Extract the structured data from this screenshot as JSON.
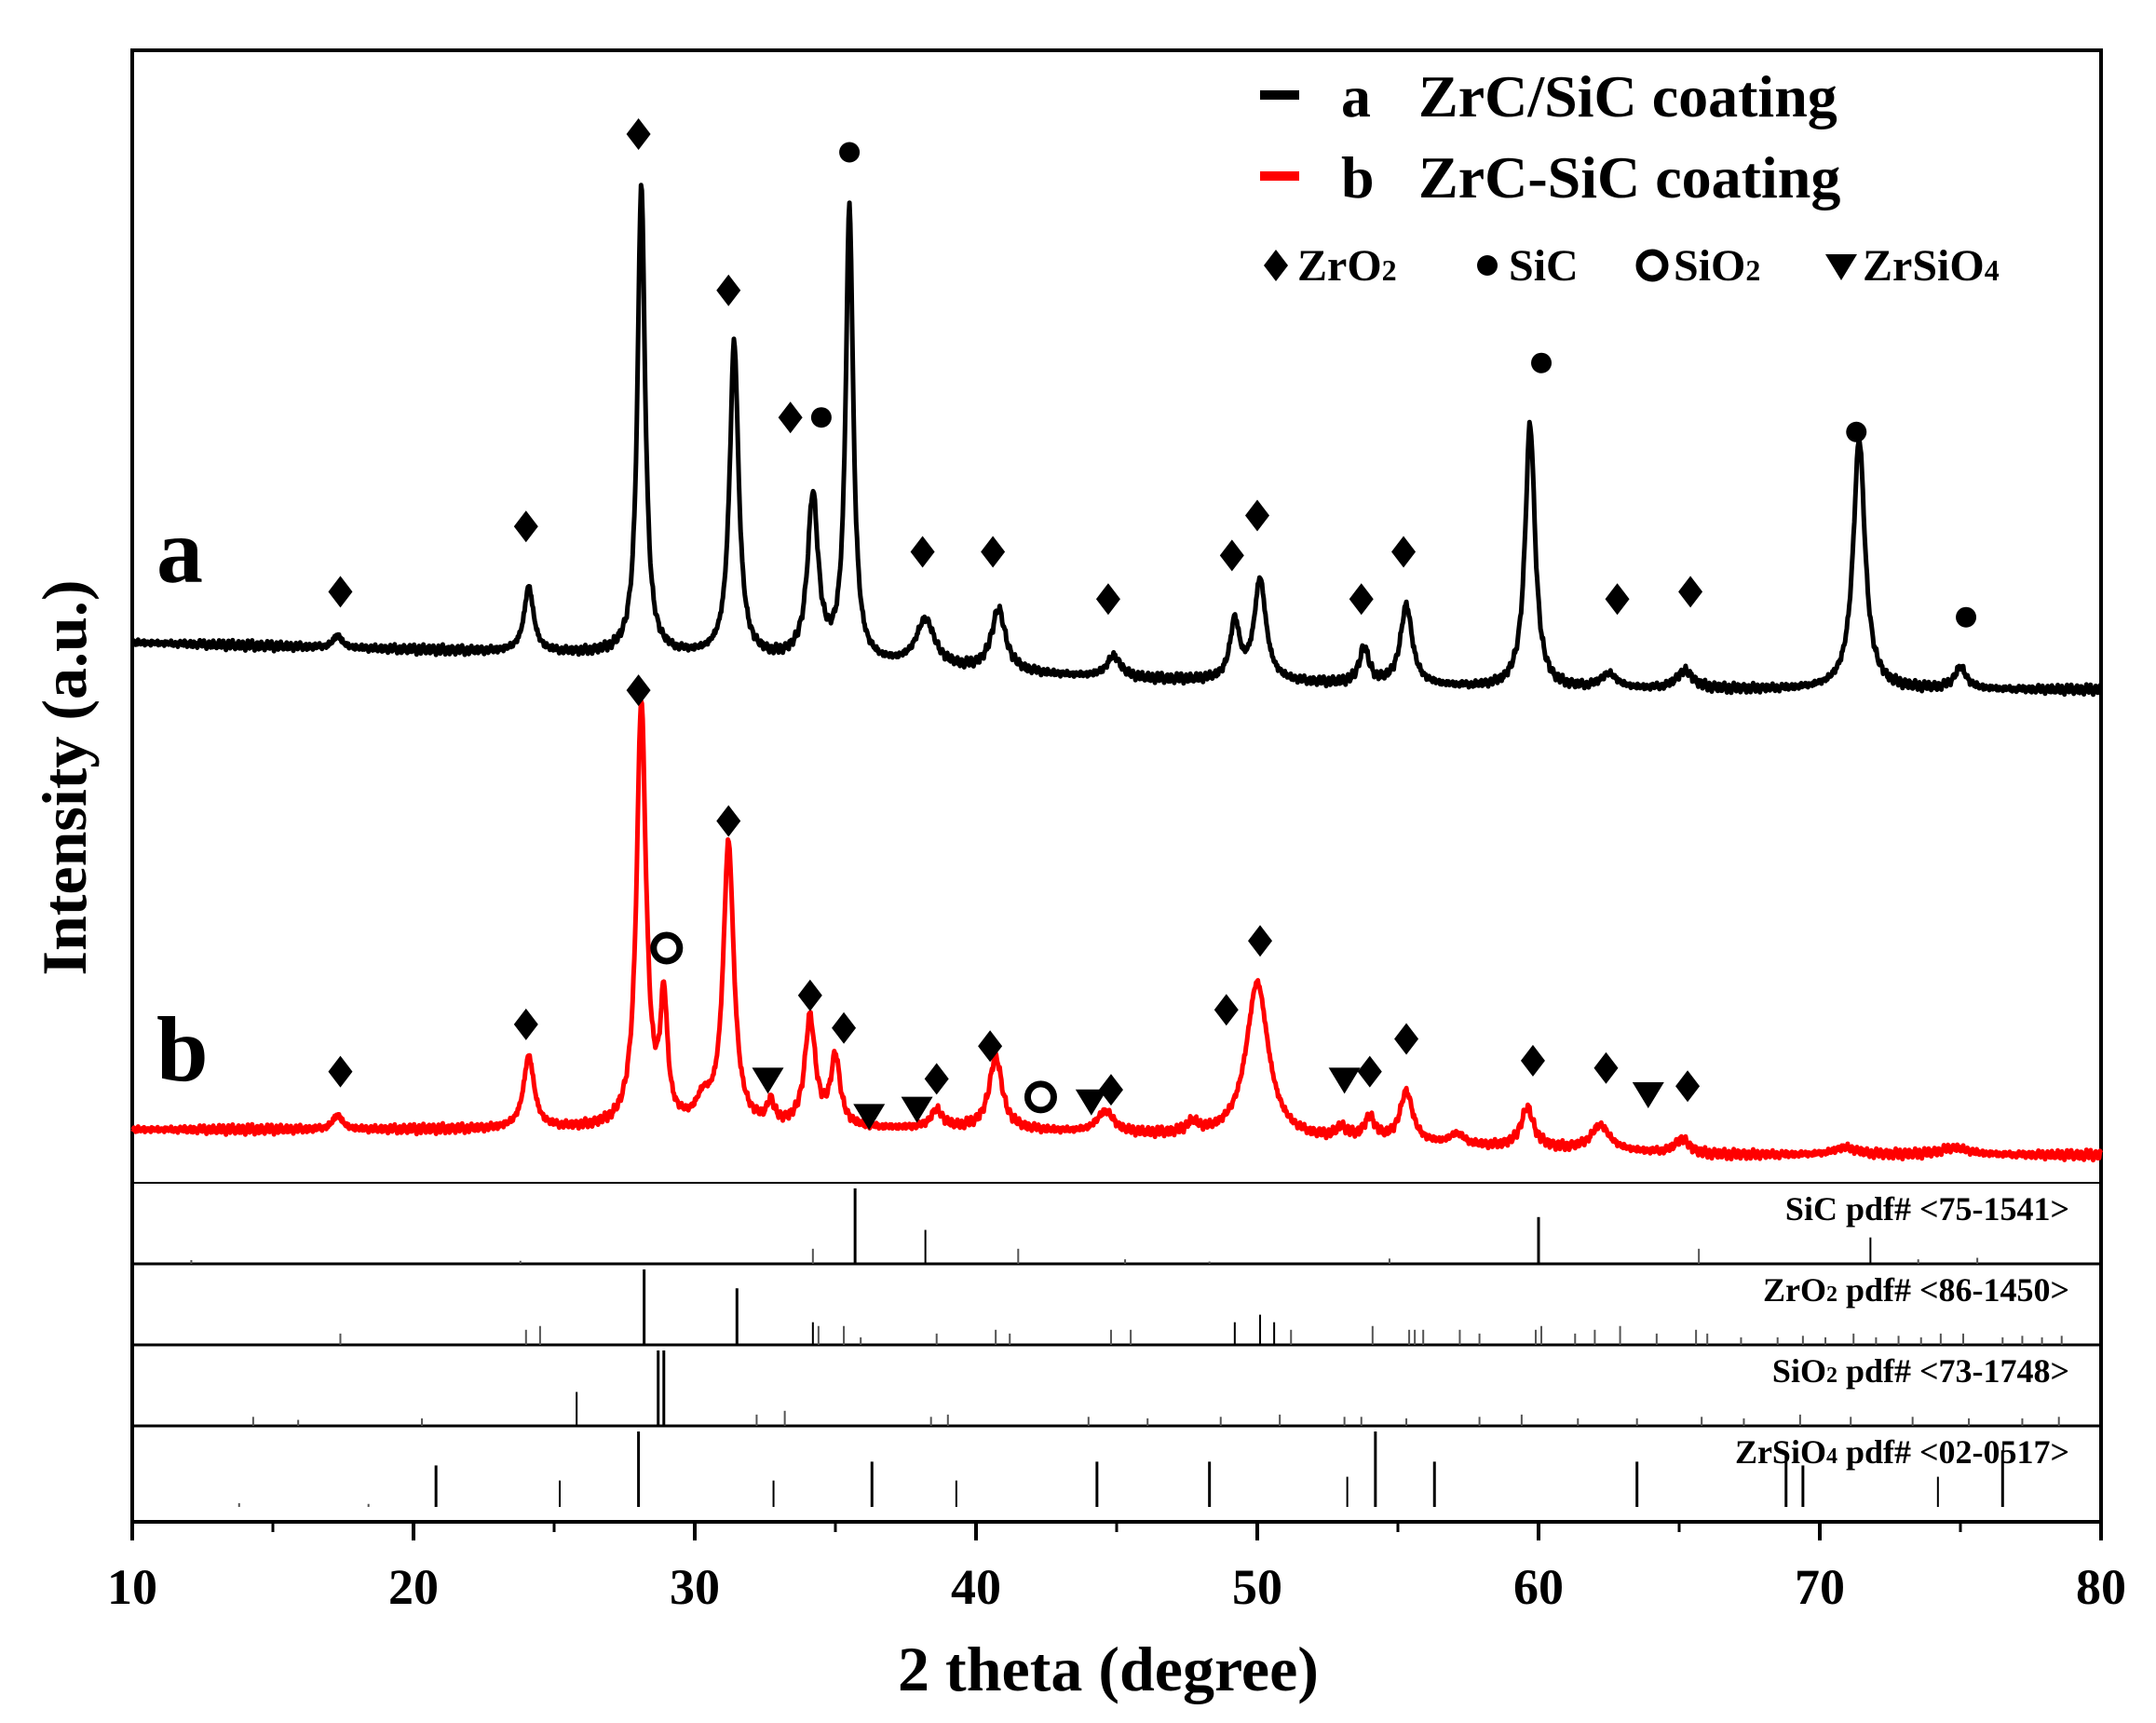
{
  "chart_data": {
    "type": "line",
    "xlabel": "2 theta (degree)",
    "ylabel": "Intensity (a.u.)",
    "xlim": [
      10,
      80
    ],
    "xticks": [
      10,
      20,
      30,
      40,
      50,
      60,
      70,
      80
    ],
    "legend": {
      "placement": "top-right",
      "entries": [
        {
          "marker": "a",
          "text": "ZrC/SiC coating",
          "color": "#000000"
        },
        {
          "marker": "b",
          "text": "ZrC-SiC coating",
          "color": "#ff0000"
        }
      ],
      "phases": [
        {
          "symbol": "diamond",
          "label": "ZrO",
          "sub": "2"
        },
        {
          "symbol": "dot",
          "label": "SiC",
          "sub": ""
        },
        {
          "symbol": "circle",
          "label": "SiO",
          "sub": "2"
        },
        {
          "symbol": "triangle",
          "label": "ZrSiO",
          "sub": "4"
        }
      ]
    },
    "series": [
      {
        "name": "a",
        "color": "#000000",
        "baseline": [
          [
            10,
            0.0
          ],
          [
            30,
            -0.04
          ],
          [
            45,
            -0.1
          ],
          [
            60,
            -0.13
          ],
          [
            80,
            -0.13
          ]
        ],
        "peaks": [
          [
            17.3,
            0.035,
            0.35
          ],
          [
            24.1,
            0.18,
            0.4
          ],
          [
            28.1,
            1.3,
            0.32
          ],
          [
            31.4,
            0.87,
            0.38
          ],
          [
            34.2,
            0.45,
            0.45
          ],
          [
            35.5,
            1.25,
            0.32
          ],
          [
            38.2,
            0.13,
            0.8
          ],
          [
            40.8,
            0.17,
            0.6
          ],
          [
            44.9,
            0.06,
            0.6
          ],
          [
            49.2,
            0.16,
            0.4
          ],
          [
            50.1,
            0.28,
            0.5
          ],
          [
            53.8,
            0.1,
            0.4
          ],
          [
            55.3,
            0.22,
            0.5
          ],
          [
            59.7,
            0.73,
            0.42
          ],
          [
            62.5,
            0.04,
            0.7
          ],
          [
            65.2,
            0.05,
            0.7
          ],
          [
            71.4,
            0.69,
            0.5
          ],
          [
            75.0,
            0.06,
            0.5
          ]
        ],
        "labels": [
          {
            "x": 17.4,
            "y": 0.14,
            "symbol": "diamond"
          },
          {
            "x": 24.0,
            "y": 0.32,
            "symbol": "diamond"
          },
          {
            "x": 28.0,
            "y": 1.4,
            "symbol": "diamond"
          },
          {
            "x": 31.2,
            "y": 0.97,
            "symbol": "diamond"
          },
          {
            "x": 33.4,
            "y": 0.62,
            "symbol": "diamond"
          },
          {
            "x": 34.5,
            "y": 0.62,
            "symbol": "dot"
          },
          {
            "x": 35.5,
            "y": 1.35,
            "symbol": "dot"
          },
          {
            "x": 38.1,
            "y": 0.25,
            "symbol": "diamond"
          },
          {
            "x": 40.6,
            "y": 0.25,
            "symbol": "diamond"
          },
          {
            "x": 44.7,
            "y": 0.12,
            "symbol": "diamond"
          },
          {
            "x": 49.1,
            "y": 0.24,
            "symbol": "diamond"
          },
          {
            "x": 50.0,
            "y": 0.35,
            "symbol": "diamond"
          },
          {
            "x": 53.7,
            "y": 0.12,
            "symbol": "diamond"
          },
          {
            "x": 55.2,
            "y": 0.25,
            "symbol": "diamond"
          },
          {
            "x": 60.1,
            "y": 0.77,
            "symbol": "dot"
          },
          {
            "x": 62.8,
            "y": 0.12,
            "symbol": "diamond"
          },
          {
            "x": 65.4,
            "y": 0.14,
            "symbol": "diamond"
          },
          {
            "x": 71.3,
            "y": 0.58,
            "symbol": "dot"
          },
          {
            "x": 75.2,
            "y": 0.07,
            "symbol": "dot"
          }
        ]
      },
      {
        "name": "b",
        "color": "#ff0000",
        "baseline": [
          [
            10,
            0.0
          ],
          [
            40,
            0.0
          ],
          [
            66,
            -0.07
          ],
          [
            80,
            -0.07
          ]
        ],
        "peaks": [
          [
            17.3,
            0.04,
            0.4
          ],
          [
            24.1,
            0.2,
            0.45
          ],
          [
            28.1,
            1.17,
            0.4
          ],
          [
            28.9,
            0.33,
            0.3
          ],
          [
            30.3,
            0.06,
            0.6
          ],
          [
            31.2,
            0.78,
            0.45
          ],
          [
            32.7,
            0.06,
            0.3
          ],
          [
            34.1,
            0.3,
            0.45
          ],
          [
            35.0,
            0.19,
            0.4
          ],
          [
            38.6,
            0.05,
            0.5
          ],
          [
            40.7,
            0.2,
            0.55
          ],
          [
            44.6,
            0.06,
            0.7
          ],
          [
            47.7,
            0.03,
            0.5
          ],
          [
            50.0,
            0.43,
            0.95
          ],
          [
            53.0,
            0.03,
            0.5
          ],
          [
            54.0,
            0.06,
            0.5
          ],
          [
            55.3,
            0.14,
            0.55
          ],
          [
            57.1,
            0.03,
            0.6
          ],
          [
            59.6,
            0.11,
            0.55
          ],
          [
            62.2,
            0.07,
            0.8
          ],
          [
            65.1,
            0.04,
            0.6
          ],
          [
            70.9,
            0.02,
            1.0
          ],
          [
            74.8,
            0.02,
            1.2
          ]
        ],
        "labels": [
          {
            "x": 17.4,
            "y": 0.16,
            "symbol": "diamond"
          },
          {
            "x": 24.0,
            "y": 0.29,
            "symbol": "diamond"
          },
          {
            "x": 28.0,
            "y": 1.21,
            "symbol": "diamond"
          },
          {
            "x": 29.0,
            "y": 0.5,
            "symbol": "circle"
          },
          {
            "x": 31.2,
            "y": 0.85,
            "symbol": "diamond"
          },
          {
            "x": 32.6,
            "y": 0.14,
            "symbol": "triangle"
          },
          {
            "x": 34.1,
            "y": 0.37,
            "symbol": "diamond"
          },
          {
            "x": 35.3,
            "y": 0.28,
            "symbol": "diamond"
          },
          {
            "x": 36.2,
            "y": 0.04,
            "symbol": "triangle"
          },
          {
            "x": 37.9,
            "y": 0.06,
            "symbol": "triangle"
          },
          {
            "x": 38.6,
            "y": 0.14,
            "symbol": "diamond"
          },
          {
            "x": 40.5,
            "y": 0.23,
            "symbol": "diamond"
          },
          {
            "x": 42.3,
            "y": 0.09,
            "symbol": "circle"
          },
          {
            "x": 44.1,
            "y": 0.08,
            "symbol": "triangle"
          },
          {
            "x": 44.8,
            "y": 0.11,
            "symbol": "diamond"
          },
          {
            "x": 48.9,
            "y": 0.33,
            "symbol": "diamond"
          },
          {
            "x": 50.1,
            "y": 0.52,
            "symbol": "diamond"
          },
          {
            "x": 53.1,
            "y": 0.14,
            "symbol": "triangle"
          },
          {
            "x": 54.0,
            "y": 0.16,
            "symbol": "diamond"
          },
          {
            "x": 55.3,
            "y": 0.25,
            "symbol": "diamond"
          },
          {
            "x": 59.8,
            "y": 0.19,
            "symbol": "diamond"
          },
          {
            "x": 62.4,
            "y": 0.17,
            "symbol": "diamond"
          },
          {
            "x": 63.9,
            "y": 0.1,
            "symbol": "triangle"
          },
          {
            "x": 65.3,
            "y": 0.12,
            "symbol": "diamond"
          }
        ]
      }
    ],
    "reference_patterns": [
      {
        "label": "SiC pdf# <75-1541>",
        "lines": [
          [
            12.1,
            0.05
          ],
          [
            23.8,
            0.04
          ],
          [
            34.2,
            0.2
          ],
          [
            35.7,
            1.0
          ],
          [
            38.2,
            0.45
          ],
          [
            41.5,
            0.2
          ],
          [
            45.3,
            0.06
          ],
          [
            48.3,
            0.03
          ],
          [
            54.7,
            0.07
          ],
          [
            60.0,
            0.62
          ],
          [
            65.7,
            0.2
          ],
          [
            71.8,
            0.35
          ],
          [
            73.5,
            0.06
          ],
          [
            75.6,
            0.08
          ]
        ]
      },
      {
        "label": "ZrO pdf# <86-1450>",
        "label_sub": "2",
        "lines": [
          [
            17.4,
            0.15
          ],
          [
            24.0,
            0.2
          ],
          [
            24.5,
            0.25
          ],
          [
            28.2,
            1.0
          ],
          [
            31.5,
            0.75
          ],
          [
            34.2,
            0.3
          ],
          [
            34.4,
            0.25
          ],
          [
            35.3,
            0.25
          ],
          [
            35.9,
            0.1
          ],
          [
            38.6,
            0.15
          ],
          [
            40.7,
            0.2
          ],
          [
            41.2,
            0.15
          ],
          [
            44.8,
            0.2
          ],
          [
            45.5,
            0.2
          ],
          [
            49.2,
            0.3
          ],
          [
            50.1,
            0.4
          ],
          [
            50.6,
            0.3
          ],
          [
            51.2,
            0.2
          ],
          [
            54.1,
            0.25
          ],
          [
            55.4,
            0.2
          ],
          [
            55.6,
            0.2
          ],
          [
            55.9,
            0.2
          ],
          [
            57.2,
            0.2
          ],
          [
            57.9,
            0.15
          ],
          [
            59.9,
            0.2
          ],
          [
            60.1,
            0.25
          ],
          [
            61.3,
            0.15
          ],
          [
            62.0,
            0.2
          ],
          [
            62.9,
            0.25
          ],
          [
            64.2,
            0.15
          ],
          [
            65.6,
            0.2
          ],
          [
            66.0,
            0.15
          ],
          [
            67.2,
            0.1
          ],
          [
            68.5,
            0.1
          ],
          [
            69.4,
            0.12
          ],
          [
            70.2,
            0.1
          ],
          [
            71.2,
            0.15
          ],
          [
            72.0,
            0.1
          ],
          [
            72.8,
            0.12
          ],
          [
            73.6,
            0.1
          ],
          [
            74.3,
            0.15
          ],
          [
            75.1,
            0.15
          ],
          [
            76.5,
            0.1
          ],
          [
            77.2,
            0.12
          ],
          [
            77.9,
            0.1
          ],
          [
            78.6,
            0.12
          ]
        ]
      },
      {
        "label": "SiO pdf# <73-1748>",
        "label_sub": "2",
        "lines": [
          [
            14.3,
            0.12
          ],
          [
            15.9,
            0.08
          ],
          [
            20.3,
            0.1
          ],
          [
            25.8,
            0.45
          ],
          [
            28.7,
            1.0
          ],
          [
            28.9,
            1.0
          ],
          [
            32.2,
            0.15
          ],
          [
            33.2,
            0.2
          ],
          [
            38.4,
            0.12
          ],
          [
            39.0,
            0.15
          ],
          [
            44.0,
            0.12
          ],
          [
            46.1,
            0.1
          ],
          [
            48.7,
            0.12
          ],
          [
            50.8,
            0.15
          ],
          [
            53.1,
            0.12
          ],
          [
            53.7,
            0.12
          ],
          [
            55.3,
            0.1
          ],
          [
            57.9,
            0.12
          ],
          [
            59.4,
            0.15
          ],
          [
            61.4,
            0.1
          ],
          [
            63.5,
            0.1
          ],
          [
            65.8,
            0.12
          ],
          [
            67.3,
            0.1
          ],
          [
            69.3,
            0.15
          ],
          [
            71.1,
            0.12
          ],
          [
            73.3,
            0.12
          ],
          [
            75.3,
            0.1
          ],
          [
            77.2,
            0.1
          ],
          [
            78.5,
            0.12
          ]
        ]
      },
      {
        "label": "ZrSiO pdf# <02-0517>",
        "label_sub": "4",
        "lines": [
          [
            13.8,
            0.05
          ],
          [
            18.4,
            0.04
          ],
          [
            20.8,
            0.55
          ],
          [
            25.2,
            0.35
          ],
          [
            28.0,
            1.0
          ],
          [
            32.8,
            0.35
          ],
          [
            36.3,
            0.6
          ],
          [
            39.3,
            0.35
          ],
          [
            44.3,
            0.6
          ],
          [
            48.3,
            0.6
          ],
          [
            53.2,
            0.4
          ],
          [
            54.2,
            1.0
          ],
          [
            56.3,
            0.6
          ],
          [
            63.5,
            0.6
          ],
          [
            68.8,
            0.7
          ],
          [
            69.4,
            0.55
          ],
          [
            74.2,
            0.4
          ],
          [
            76.5,
            0.75
          ]
        ]
      }
    ]
  }
}
